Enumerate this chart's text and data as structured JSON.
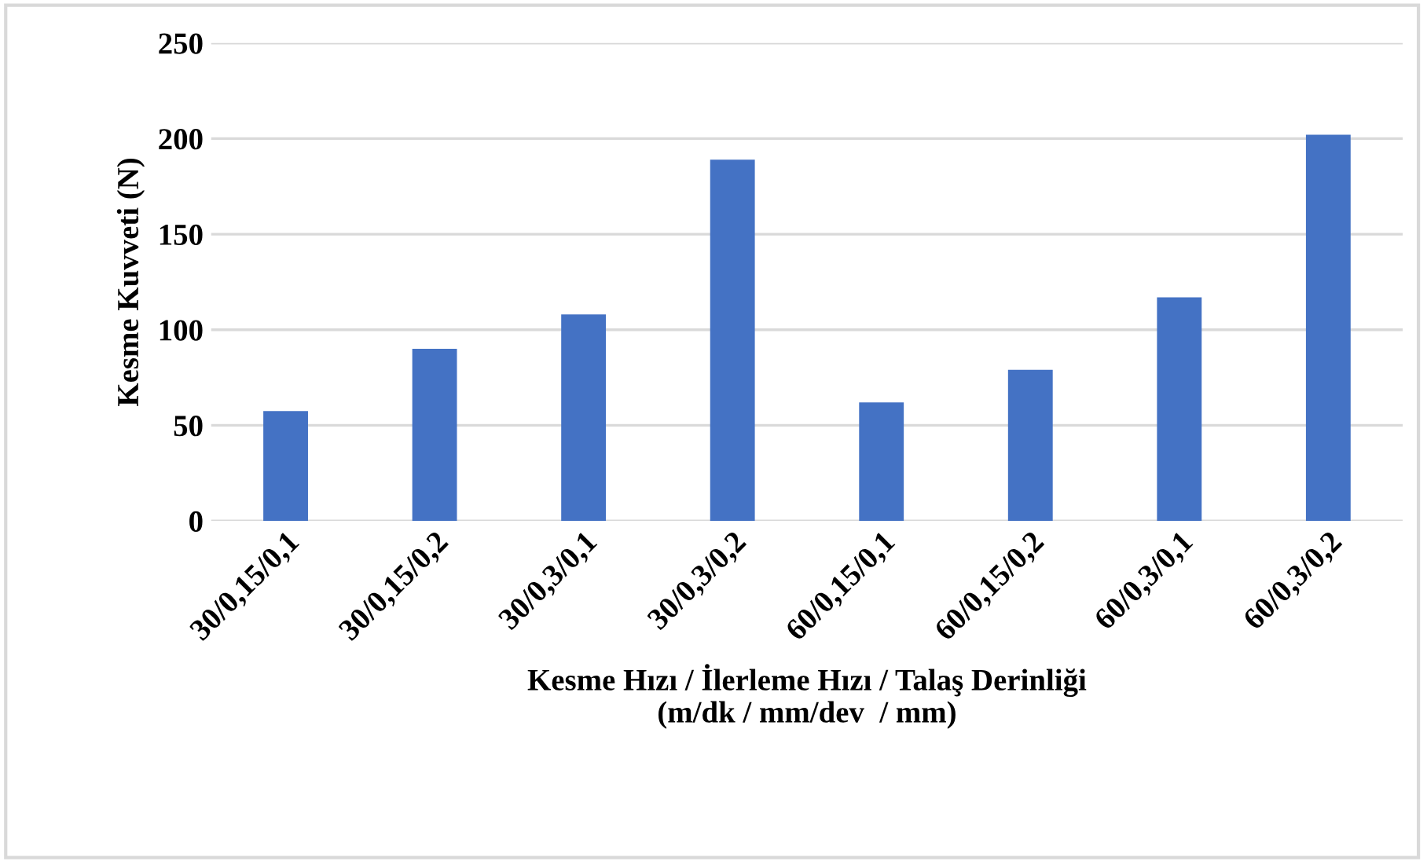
{
  "chart_data": {
    "type": "bar",
    "categories": [
      "30/0,15/0,1",
      "30/0,15/0,2",
      "30/0,3/0,1",
      "30/0,3/0,2",
      "60/0,15/0,1",
      "60/0,15/0,2",
      "60/0,3/0,1",
      "60/0,3/0,2"
    ],
    "values": [
      57.5,
      90,
      108,
      189,
      62,
      79,
      117,
      202
    ],
    "color": "#4472c4",
    "xlabel": "Kesme Hızı / İlerleme Hızı / Talaş Derinliği\n(m/dk / mm/dev  / mm)",
    "ylabel": "Kesme Kuvveti (N)",
    "ylim": [
      0,
      250
    ],
    "yticks": [
      0,
      50,
      100,
      150,
      200,
      250
    ],
    "grid": "y"
  }
}
